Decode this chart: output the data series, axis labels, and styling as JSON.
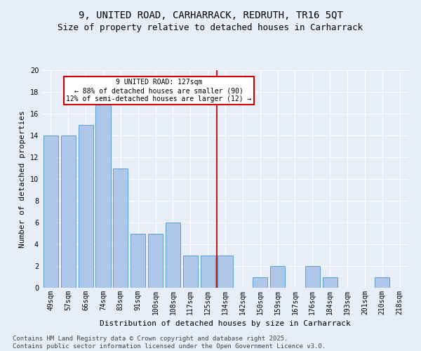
{
  "title1": "9, UNITED ROAD, CARHARRACK, REDRUTH, TR16 5QT",
  "title2": "Size of property relative to detached houses in Carharrack",
  "xlabel": "Distribution of detached houses by size in Carharrack",
  "ylabel": "Number of detached properties",
  "categories": [
    "49sqm",
    "57sqm",
    "66sqm",
    "74sqm",
    "83sqm",
    "91sqm",
    "100sqm",
    "108sqm",
    "117sqm",
    "125sqm",
    "134sqm",
    "142sqm",
    "150sqm",
    "159sqm",
    "167sqm",
    "176sqm",
    "184sqm",
    "193sqm",
    "201sqm",
    "210sqm",
    "218sqm"
  ],
  "values": [
    14,
    14,
    15,
    17,
    11,
    5,
    5,
    6,
    3,
    3,
    3,
    0,
    1,
    2,
    0,
    2,
    1,
    0,
    0,
    1,
    0
  ],
  "bar_color": "#aec6e8",
  "bar_edge_color": "#5a9fd4",
  "vline_x": 9.5,
  "vline_color": "#cc0000",
  "annotation_text": "9 UNITED ROAD: 127sqm\n← 88% of detached houses are smaller (90)\n12% of semi-detached houses are larger (12) →",
  "annotation_box_color": "#cc0000",
  "bg_color": "#e8eef8",
  "grid_color": "#ffffff",
  "ylim": [
    0,
    20
  ],
  "yticks": [
    0,
    2,
    4,
    6,
    8,
    10,
    12,
    14,
    16,
    18,
    20
  ],
  "footer": "Contains HM Land Registry data © Crown copyright and database right 2025.\nContains public sector information licensed under the Open Government Licence v3.0.",
  "title_fontsize": 10,
  "subtitle_fontsize": 9,
  "label_fontsize": 8,
  "tick_fontsize": 7,
  "footer_fontsize": 6.5
}
